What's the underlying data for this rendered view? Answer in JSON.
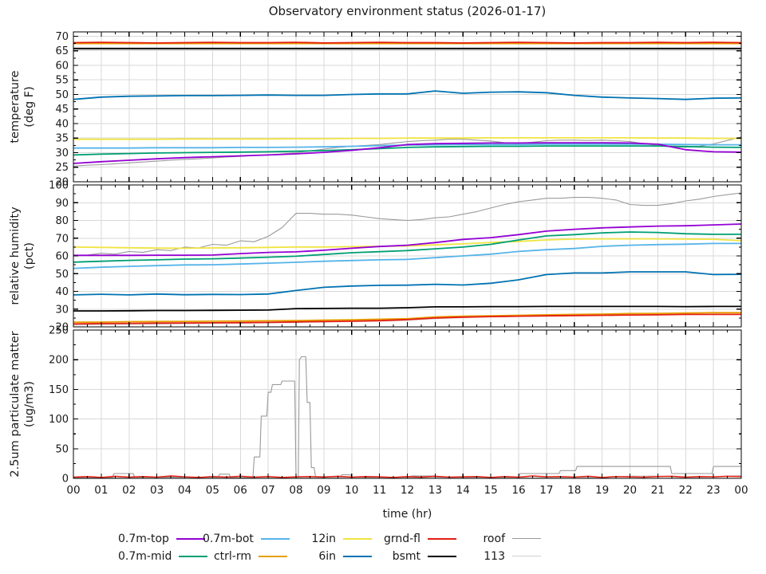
{
  "title": "Observatory environment status (2026-01-17)",
  "x_axis": {
    "label": "time (hr)",
    "range": [
      0,
      24
    ],
    "tick_labels": [
      "00",
      "01",
      "02",
      "03",
      "04",
      "05",
      "06",
      "07",
      "08",
      "09",
      "10",
      "11",
      "12",
      "13",
      "14",
      "15",
      "16",
      "17",
      "18",
      "19",
      "20",
      "21",
      "22",
      "23",
      "00"
    ]
  },
  "legend": {
    "rows": [
      [
        "0.7m-top",
        "0.7m-bot",
        "12in",
        "grnd-fl",
        "roof"
      ],
      [
        "0.7m-mid",
        "ctrl-rm",
        "6in",
        "bsmt",
        "113"
      ]
    ]
  },
  "chart_data": [
    {
      "type": "line",
      "panel": "temperature",
      "ylabel_lines": [
        "temperature",
        "(deg F)"
      ],
      "ylim": [
        20,
        71.5
      ],
      "yticks": [
        20,
        25,
        30,
        35,
        40,
        45,
        50,
        55,
        60,
        65,
        70
      ],
      "grid": true,
      "series": [
        {
          "name": "113",
          "color": "#cfcfcf",
          "lw": 1.1,
          "const": 65.4
        },
        {
          "name": "roof",
          "color": "#9a9a9a",
          "lw": 1.1,
          "values": [
            25.4,
            25.7,
            25.9,
            26.2,
            26.5,
            26.8,
            27.1,
            27.4,
            27.7,
            27.9,
            28.2,
            28.5,
            28.7,
            29.0,
            29.2,
            29.6,
            30.0,
            30.6,
            31.2,
            31.8,
            32.2,
            32.5,
            32.8,
            33.3,
            33.8,
            34.1,
            34.3,
            34.6,
            34.6,
            34.3,
            34.0,
            33.4,
            33.2,
            33.6,
            34.1,
            34.3,
            34.3,
            34.2,
            34.3,
            34.1,
            33.8,
            33.1,
            32.4,
            32.0,
            31.9,
            32.2,
            33.0,
            34.2,
            35.4
          ]
        },
        {
          "name": "12in",
          "color": "#f0e442",
          "lw": 1.8,
          "values": [
            34.6,
            34.6,
            34.6,
            34.6,
            34.7,
            34.7,
            34.7,
            34.7,
            34.8,
            34.8,
            34.9,
            34.9,
            35.0,
            35.0,
            35.0,
            35.1,
            35.1,
            35.1,
            35.1,
            35.1,
            35.1,
            35.0,
            35.0,
            34.9,
            34.9
          ]
        },
        {
          "name": "ctrl-rm",
          "color": "#e69f00",
          "lw": 1.8,
          "const": 67.5
        },
        {
          "name": "0.7m-bot",
          "color": "#56b4e9",
          "lw": 1.8,
          "values": [
            31.6,
            31.6,
            31.6,
            31.7,
            31.7,
            31.7,
            31.8,
            31.8,
            31.9,
            32.0,
            32.2,
            32.4,
            32.6,
            32.7,
            32.8,
            32.8,
            32.8,
            32.9,
            32.9,
            32.9,
            32.9,
            32.9,
            32.8,
            32.7,
            32.7
          ]
        },
        {
          "name": "0.7m-mid",
          "color": "#009e73",
          "lw": 1.8,
          "values": [
            29.2,
            29.5,
            29.7,
            29.9,
            30.0,
            30.1,
            30.2,
            30.3,
            30.5,
            30.7,
            31.0,
            31.4,
            31.8,
            32.0,
            32.1,
            32.2,
            32.2,
            32.3,
            32.3,
            32.3,
            32.3,
            32.3,
            32.1,
            31.9,
            31.8
          ]
        },
        {
          "name": "0.7m-top",
          "color": "#9400d3",
          "lw": 1.8,
          "values": [
            26.3,
            26.9,
            27.4,
            27.9,
            28.3,
            28.6,
            28.9,
            29.2,
            29.6,
            30.1,
            30.8,
            31.7,
            32.8,
            33.1,
            33.2,
            33.3,
            33.3,
            33.4,
            33.4,
            33.4,
            33.3,
            32.9,
            31.0,
            30.3,
            30.2
          ]
        },
        {
          "name": "6in",
          "color": "#0072b2",
          "lw": 1.8,
          "values": [
            48.3,
            49.1,
            49.4,
            49.5,
            49.6,
            49.6,
            49.7,
            49.8,
            49.7,
            49.7,
            50.0,
            50.2,
            50.2,
            51.2,
            50.4,
            50.8,
            50.9,
            50.6,
            49.7,
            49.1,
            48.8,
            48.6,
            48.3,
            48.7,
            48.8
          ]
        },
        {
          "name": "bsmt",
          "color": "#000000",
          "lw": 1.8,
          "const": 65.8
        },
        {
          "name": "grnd-fl",
          "color": "#e51e10",
          "lw": 1.8,
          "values": [
            67.8,
            67.9,
            67.8,
            67.7,
            67.8,
            67.9,
            67.8,
            67.8,
            67.9,
            67.7,
            67.8,
            67.9,
            67.8,
            67.8,
            67.7,
            67.8,
            67.9,
            67.8,
            67.7,
            67.8,
            67.8,
            67.9,
            67.8,
            67.9,
            67.8
          ]
        }
      ]
    },
    {
      "type": "line",
      "panel": "relative-humidity",
      "ylabel_lines": [
        "relative humidity",
        "(pct)"
      ],
      "ylim": [
        20,
        100
      ],
      "yticks": [
        20,
        30,
        40,
        50,
        60,
        70,
        80,
        90,
        100
      ],
      "grid": true,
      "series": [
        {
          "name": "113",
          "color": "#cfcfcf",
          "lw": 1.1,
          "values": [
            21.0,
            21.2,
            21.4,
            21.5,
            21.7,
            21.9,
            22.0,
            22.2,
            22.4,
            22.7,
            22.9,
            23.2,
            23.6,
            24.6,
            25.2,
            25.6,
            25.9,
            26.1,
            26.3,
            26.5,
            26.6,
            26.8,
            26.9,
            27.1,
            27.2
          ]
        },
        {
          "name": "roof",
          "color": "#9a9a9a",
          "lw": 1.1,
          "values": [
            60,
            60.5,
            61.5,
            61,
            62.5,
            62,
            63.5,
            63,
            65,
            64.5,
            66.5,
            66,
            68.5,
            68,
            71,
            76,
            84,
            84,
            83.5,
            83.5,
            83,
            82,
            81,
            80.5,
            80,
            80.5,
            81.5,
            82,
            83.5,
            85,
            87,
            89,
            90.5,
            91.5,
            92.5,
            92.5,
            93,
            93,
            92.5,
            91.5,
            89,
            88.5,
            88.5,
            89.5,
            91,
            92,
            93.5,
            94.5,
            95.5
          ]
        },
        {
          "name": "12in",
          "color": "#f0e442",
          "lw": 1.8,
          "values": [
            65.0,
            64.8,
            64.6,
            64.4,
            64.3,
            64.5,
            64.6,
            64.8,
            65.0,
            65.0,
            65.2,
            65.4,
            65.6,
            66.2,
            66.8,
            67.6,
            68.2,
            69.0,
            69.5,
            69.6,
            69.6,
            69.6,
            69.5,
            69.4,
            68.6
          ]
        },
        {
          "name": "ctrl-rm",
          "color": "#e69f00",
          "lw": 1.8,
          "values": [
            22.6,
            22.7,
            22.9,
            23.0,
            23.1,
            23.2,
            23.3,
            23.4,
            23.5,
            23.8,
            24.0,
            24.3,
            24.6,
            25.6,
            26.0,
            26.2,
            26.5,
            26.8,
            27.0,
            27.2,
            27.5,
            27.6,
            27.8,
            28.0,
            28.0
          ]
        },
        {
          "name": "0.7m-bot",
          "color": "#56b4e9",
          "lw": 1.8,
          "values": [
            53.0,
            53.6,
            54.1,
            54.5,
            54.9,
            55.0,
            55.4,
            55.9,
            56.4,
            57.0,
            57.4,
            57.8,
            58.0,
            59.0,
            60.0,
            61.0,
            62.5,
            63.5,
            64.2,
            65.4,
            66.0,
            66.4,
            66.6,
            67.0,
            67.0
          ]
        },
        {
          "name": "0.7m-mid",
          "color": "#009e73",
          "lw": 1.8,
          "values": [
            56.5,
            57.0,
            57.5,
            57.8,
            58.2,
            58.4,
            58.8,
            59.3,
            59.8,
            60.8,
            61.8,
            62.4,
            63.0,
            64.0,
            65.0,
            66.5,
            69.0,
            71.3,
            72.0,
            73.0,
            73.5,
            73.2,
            72.5,
            72.2,
            72.2
          ]
        },
        {
          "name": "6in",
          "color": "#0072b2",
          "lw": 1.8,
          "values": [
            38.0,
            38.4,
            38.0,
            38.5,
            38.1,
            38.3,
            38.2,
            38.5,
            40.5,
            42.3,
            43.0,
            43.4,
            43.5,
            44.0,
            43.6,
            44.6,
            46.5,
            49.5,
            50.4,
            50.4,
            51.0,
            51.0,
            51.0,
            49.5,
            49.6
          ]
        },
        {
          "name": "bsmt",
          "color": "#000000",
          "lw": 1.8,
          "values": [
            29.0,
            29.0,
            29.1,
            29.2,
            29.2,
            29.3,
            29.4,
            29.5,
            30.3,
            30.4,
            30.5,
            30.5,
            30.8,
            31.3,
            31.3,
            31.4,
            31.4,
            31.5,
            31.5,
            31.5,
            31.5,
            31.5,
            31.4,
            31.5,
            31.5
          ]
        },
        {
          "name": "0.7m-top",
          "color": "#9400d3",
          "lw": 1.8,
          "values": [
            60.3,
            60.3,
            60.3,
            60.4,
            60.4,
            60.5,
            61.3,
            62.0,
            62.3,
            63.2,
            64.3,
            65.3,
            66.0,
            67.5,
            69.3,
            70.3,
            72.0,
            74.0,
            75.0,
            75.8,
            76.3,
            76.8,
            77.0,
            77.5,
            78.0
          ]
        },
        {
          "name": "grnd-fl",
          "color": "#e51e10",
          "lw": 1.8,
          "values": [
            21.6,
            21.9,
            22.0,
            22.1,
            22.2,
            22.3,
            22.4,
            22.5,
            22.8,
            23.0,
            23.2,
            23.5,
            24.1,
            25.0,
            25.5,
            25.8,
            26.0,
            26.2,
            26.4,
            26.5,
            26.7,
            26.8,
            27.0,
            27.0,
            27.0
          ]
        }
      ]
    },
    {
      "type": "line",
      "panel": "particulate-matter",
      "ylabel_lines": [
        "2.5um particulate matter",
        "(ug/m3)"
      ],
      "ylim": [
        0,
        250
      ],
      "yticks": [
        0,
        50,
        100,
        150,
        200,
        250
      ],
      "grid": true,
      "series": [
        {
          "name": "113",
          "color": "#cfcfcf",
          "lw": 1.1,
          "values": [
            1,
            1,
            1,
            1,
            1,
            1,
            1,
            1,
            1,
            1,
            2,
            1,
            1,
            2,
            1,
            1,
            1,
            1,
            2,
            1,
            4,
            4,
            1,
            2,
            5
          ]
        },
        {
          "name": "roof",
          "color": "#9a9a9a",
          "lw": 1.1,
          "points": [
            [
              0,
              1
            ],
            [
              1.4,
              1
            ],
            [
              1.45,
              8
            ],
            [
              2.15,
              8
            ],
            [
              2.2,
              2
            ],
            [
              5.2,
              2
            ],
            [
              5.25,
              7
            ],
            [
              5.6,
              7
            ],
            [
              5.65,
              1
            ],
            [
              6.45,
              1
            ],
            [
              6.5,
              36
            ],
            [
              6.7,
              36
            ],
            [
              6.75,
              105
            ],
            [
              6.95,
              105
            ],
            [
              7.0,
              145
            ],
            [
              7.1,
              145
            ],
            [
              7.15,
              158
            ],
            [
              7.45,
              158
            ],
            [
              7.5,
              164
            ],
            [
              7.95,
              164
            ],
            [
              8.0,
              2
            ],
            [
              8.08,
              2
            ],
            [
              8.12,
              200
            ],
            [
              8.2,
              205
            ],
            [
              8.35,
              205
            ],
            [
              8.4,
              128
            ],
            [
              8.5,
              128
            ],
            [
              8.55,
              18
            ],
            [
              8.65,
              18
            ],
            [
              8.7,
              3
            ],
            [
              9.6,
              3
            ],
            [
              9.65,
              6
            ],
            [
              9.95,
              6
            ],
            [
              10.0,
              2
            ],
            [
              12.1,
              2
            ],
            [
              12.15,
              4
            ],
            [
              13.0,
              4
            ],
            [
              13.05,
              2
            ],
            [
              16.0,
              2
            ],
            [
              16.05,
              8
            ],
            [
              17.45,
              8
            ],
            [
              17.5,
              13
            ],
            [
              18.05,
              13
            ],
            [
              18.1,
              20
            ],
            [
              21.45,
              20
            ],
            [
              21.5,
              8
            ],
            [
              22.95,
              8
            ],
            [
              23.0,
              20
            ],
            [
              24,
              20
            ]
          ]
        },
        {
          "name": "grnd-fl",
          "color": "#e51e10",
          "lw": 1.5,
          "values": [
            2,
            3,
            1.5,
            3.5,
            2,
            3,
            2,
            4,
            2.5,
            1.5,
            3,
            2,
            3.5,
            2,
            3,
            1.5,
            2.5,
            3,
            2,
            3.5,
            2,
            3,
            2.5,
            1.5,
            3,
            2,
            3.5,
            2,
            2.5,
            3,
            1.5,
            3,
            2,
            4,
            2.5,
            3,
            2,
            3.5,
            1.5,
            3,
            2.5,
            2,
            3,
            3.5,
            2,
            3,
            2.5,
            3.5,
            3
          ]
        }
      ]
    }
  ]
}
